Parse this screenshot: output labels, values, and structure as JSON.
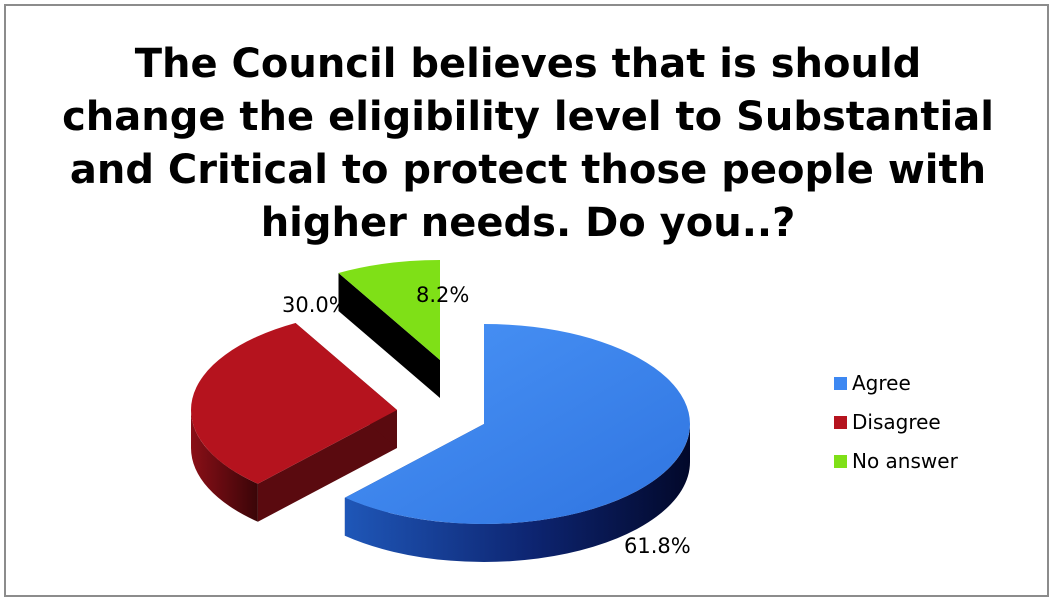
{
  "chart_data": {
    "type": "pie",
    "variant": "3d-exploded",
    "title_lines": [
      "The Council believes that is should",
      "change the eligibility level to Substantial",
      "and Critical to protect those people with",
      "higher needs. Do you..?"
    ],
    "categories": [
      "Agree",
      "Disagree",
      "No answer"
    ],
    "values": [
      61.8,
      30.0,
      8.2
    ],
    "data_labels": [
      "61.8%",
      "30.0%",
      "8.2%"
    ],
    "colors": [
      "#3d88f2",
      "#b5131e",
      "#7fe017"
    ],
    "legend": {
      "position": "right",
      "items": [
        "Agree",
        "Disagree",
        "No answer"
      ]
    }
  }
}
